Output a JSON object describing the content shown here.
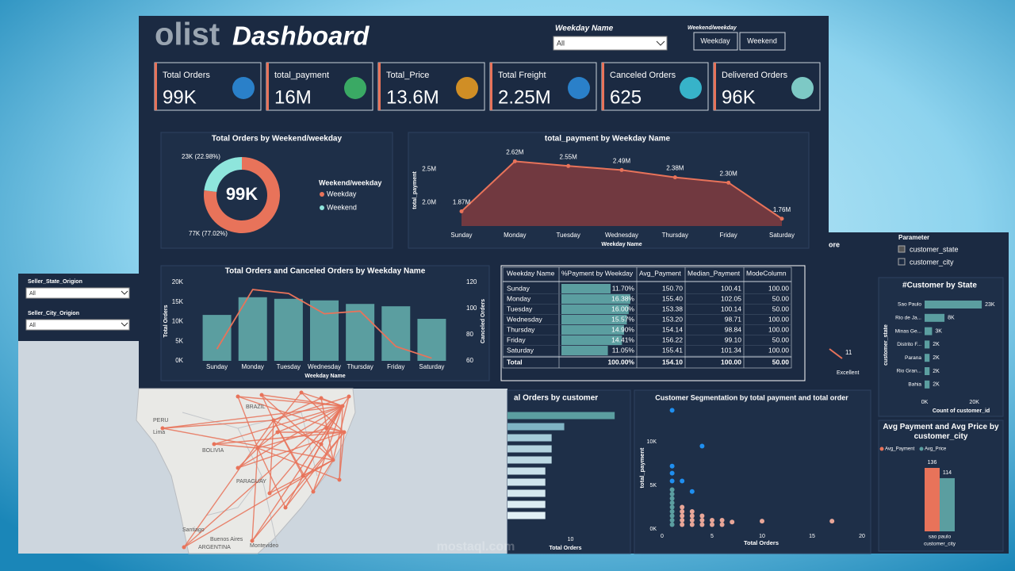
{
  "header": {
    "logo": "olist",
    "title": "Dashboard",
    "weekday_filter": {
      "label": "Weekday Name",
      "value": "All"
    },
    "type_filter": {
      "label": "Weekend/weekday",
      "options": [
        "Weekday",
        "Weekend"
      ]
    }
  },
  "kpis": [
    {
      "label": "Total Orders",
      "value": "99K"
    },
    {
      "label": "total_payment",
      "value": "16M"
    },
    {
      "label": "Total_Price",
      "value": "13.6M"
    },
    {
      "label": "Total Freight",
      "value": "2.25M"
    },
    {
      "label": "Canceled Orders",
      "value": "625"
    },
    {
      "label": "Delivered Orders",
      "value": "96K"
    }
  ],
  "seller_filters": [
    {
      "label": "Seller_State_Origion",
      "value": "All"
    },
    {
      "label": "Seller_City_Origion",
      "value": "All"
    }
  ],
  "parameter": {
    "label": "Parameter",
    "options": [
      "customer_state",
      "customer_city"
    ]
  },
  "table": {
    "columns": [
      "Weekday Name",
      "%Payment by Weekday",
      "Avg_Payment",
      "Median_Payment",
      "ModeColumn"
    ],
    "rows": [
      [
        "Sunday",
        "11.70%",
        "150.70",
        "100.41",
        "100.00"
      ],
      [
        "Monday",
        "16.38%",
        "155.40",
        "102.05",
        "50.00"
      ],
      [
        "Tuesday",
        "16.00%",
        "153.38",
        "100.14",
        "50.00"
      ],
      [
        "Wednesday",
        "15.57%",
        "153.20",
        "98.71",
        "100.00"
      ],
      [
        "Thursday",
        "14.90%",
        "154.14",
        "98.84",
        "100.00"
      ],
      [
        "Friday",
        "14.41%",
        "156.22",
        "99.10",
        "50.00"
      ],
      [
        "Saturday",
        "11.05%",
        "155.41",
        "101.34",
        "100.00"
      ]
    ],
    "total": [
      "Total",
      "100.00%",
      "154.10",
      "100.00",
      "50.00"
    ]
  },
  "map_labels": [
    "PERU",
    "Lima",
    "BRAZIL",
    "BOLIVIA",
    "PARAGUAY",
    "Santiago",
    "Buenos Aires",
    "ARGENTINA",
    "Montevideo"
  ],
  "fragments": [
    "ore",
    "11",
    "Excellent"
  ],
  "watermark": "mostaql.com",
  "chart_data": [
    {
      "type": "pie",
      "title": "Total Orders by Weekend/weekday",
      "center_label": "99K",
      "legend_title": "Weekend/weekday",
      "categories": [
        "Weekday",
        "Weekend"
      ],
      "values": [
        77,
        23
      ],
      "value_labels": [
        "77K (77.02%)",
        "23K (22.98%)"
      ],
      "colors": [
        "#e8735a",
        "#8ee5dc"
      ]
    },
    {
      "type": "area",
      "title": "total_payment by Weekday Name",
      "categories": [
        "Sunday",
        "Monday",
        "Tuesday",
        "Wednesday",
        "Thursday",
        "Friday",
        "Saturday"
      ],
      "values": [
        1.87,
        2.62,
        2.55,
        2.49,
        2.38,
        2.3,
        1.76
      ],
      "value_labels": [
        "1.87M",
        "2.62M",
        "2.55M",
        "2.49M",
        "2.38M",
        "2.30M",
        "1.76M"
      ],
      "ylim": [
        1.65,
        2.72
      ],
      "yticks": [
        {
          "value": 2,
          "label": "2.0M"
        },
        {
          "value": 2.5,
          "label": "2.5M"
        }
      ],
      "y_label": "total_payment",
      "x_label": "Weekday Name",
      "color": "#e8735a",
      "fill": "#7a3b3f"
    },
    {
      "type": "combo",
      "title": "Total Orders and Canceled Orders by Weekday Name",
      "categories": [
        "Sunday",
        "Monday",
        "Tuesday",
        "Wednesday",
        "Thursday",
        "Friday",
        "Saturday"
      ],
      "series": [
        {
          "name": "Total Orders",
          "kind": "bar",
          "color": "#5b9ea0",
          "values": [
            11.7,
            16.2,
            15.8,
            15.4,
            14.5,
            13.9,
            10.7
          ]
        },
        {
          "name": "Canceled Orders",
          "kind": "line",
          "axis": "y2",
          "color": "#e8735a",
          "values": [
            69,
            114.5,
            111.5,
            96,
            98,
            71,
            62
          ]
        }
      ],
      "ylim": [
        0,
        20
      ],
      "yticks": [
        {
          "value": 0,
          "label": "0K"
        },
        {
          "value": 5,
          "label": "5K"
        },
        {
          "value": 10,
          "label": "10K"
        },
        {
          "value": 15,
          "label": "15K"
        },
        {
          "value": 20,
          "label": "20K"
        }
      ],
      "y2lim": [
        60,
        120
      ],
      "y2ticks": [
        60,
        80,
        100,
        120
      ],
      "x_label": "Weekday Name"
    },
    {
      "type": "hbar",
      "title": "#Customer by State",
      "categories": [
        "Sao Paulo",
        "Rio de Ja...",
        "Minas Ge...",
        "Distrito F...",
        "Parana",
        "Rio Gran...",
        "Bahia"
      ],
      "values": [
        23,
        8,
        3,
        2,
        2,
        2,
        2
      ],
      "value_labels": [
        "23K",
        "8K",
        "3K",
        "2K",
        "2K",
        "2K",
        "2K"
      ],
      "xlim": [
        0,
        30
      ],
      "xticks": [
        {
          "value": 0,
          "label": "0K"
        },
        {
          "value": 20,
          "label": "20K"
        }
      ],
      "x_label": "Count of customer_id",
      "y_label": "customer_state",
      "color": "#5b9ea0"
    },
    {
      "type": "grouped_bar",
      "title": "Avg Payment and Avg Price by customer_city",
      "categories": [
        "sao paulo"
      ],
      "series": [
        {
          "name": "Avg_Payment",
          "color": "#e8735a",
          "values": [
            136
          ]
        },
        {
          "name": "Avg_Price",
          "color": "#5b9ea0",
          "values": [
            114
          ]
        }
      ],
      "ylim": [
        0,
        170
      ],
      "x_label": "customer_city"
    },
    {
      "type": "hbar",
      "title": "al Orders by customer",
      "categories": [
        null,
        null,
        null,
        null,
        null,
        null,
        null,
        null,
        null,
        null
      ],
      "values": [
        17,
        9,
        7,
        7,
        7,
        6,
        6,
        6,
        6,
        6
      ],
      "xlim": [
        0,
        20
      ],
      "xticks": [
        10
      ],
      "x_label": "Total Orders",
      "colors": [
        "#5b9ea0",
        "#7fb3c4",
        "#a5cbd8",
        "#b3d3de",
        "#bcd9e3",
        "#c8e0e9",
        "#cfe4ec",
        "#d5e8ef",
        "#dbecf2",
        "#e1f0f5"
      ]
    },
    {
      "type": "scatter",
      "title": "Customer Segmentation by total payment and total order",
      "x": [
        1,
        4,
        1,
        1,
        1,
        2,
        3,
        1,
        1,
        1,
        1,
        1,
        1,
        1,
        1,
        1,
        2,
        2,
        2,
        2,
        2,
        3,
        3,
        3,
        3,
        4,
        4,
        4,
        5,
        5,
        6,
        6,
        7,
        10,
        17
      ],
      "values": [
        13.6,
        9.5,
        7.2,
        6.4,
        5.5,
        5.5,
        4.3,
        0.5,
        1,
        1.5,
        2,
        2.5,
        3,
        3.5,
        4,
        4.5,
        0.5,
        1,
        1.5,
        2,
        2.5,
        0.5,
        1,
        1.5,
        2,
        0.5,
        1,
        1.5,
        0.5,
        1,
        0.5,
        1,
        0.8,
        0.9,
        0.9
      ],
      "colors": [
        "#1f8ff0",
        "#1f8ff0",
        "#1f8ff0",
        "#1f8ff0",
        "#1f8ff0",
        "#1f8ff0",
        "#1f8ff0",
        "#5b9ea0",
        "#5b9ea0",
        "#5b9ea0",
        "#5b9ea0",
        "#5b9ea0",
        "#5b9ea0",
        "#5b9ea0",
        "#5b9ea0",
        "#5b9ea0",
        "#e8a698",
        "#e8a698",
        "#e8a698",
        "#e8a698",
        "#e8a698",
        "#e8a698",
        "#e8a698",
        "#e8a698",
        "#e8a698",
        "#e8a698",
        "#e8a698",
        "#e8a698",
        "#e8a698",
        "#e8a698",
        "#e8a698",
        "#e8a698",
        "#e8a698",
        "#e8a698",
        "#e8a698"
      ],
      "xlim": [
        0,
        20
      ],
      "xticks": [
        0,
        5,
        10,
        15,
        20
      ],
      "ylim": [
        0,
        14
      ],
      "yticks": [
        {
          "value": 0,
          "label": "0K"
        },
        {
          "value": 5,
          "label": "5K"
        },
        {
          "value": 10,
          "label": "10K"
        }
      ],
      "x_label": "Total Orders",
      "y_label": "total_payment"
    }
  ]
}
